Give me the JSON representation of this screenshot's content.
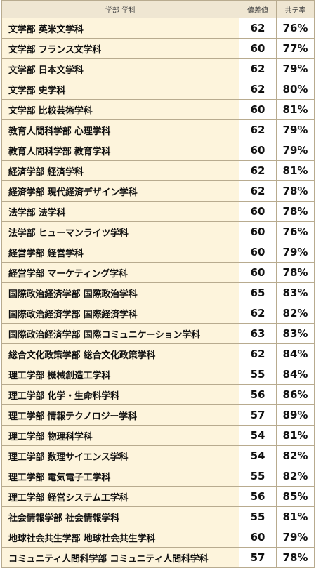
{
  "header": {
    "col_name": "学部 学科",
    "col_hensachi": "偏差値",
    "col_kyotei": "共テ率"
  },
  "rows": [
    {
      "name": "文学部 英米文学科",
      "hensachi": "62",
      "kyotei": "76%"
    },
    {
      "name": "文学部 フランス文学科",
      "hensachi": "60",
      "kyotei": "77%"
    },
    {
      "name": "文学部 日本文学科",
      "hensachi": "62",
      "kyotei": "79%"
    },
    {
      "name": "文学部 史学科",
      "hensachi": "62",
      "kyotei": "80%"
    },
    {
      "name": "文学部 比較芸術学科",
      "hensachi": "60",
      "kyotei": "81%"
    },
    {
      "name": "教育人間科学部 心理学科",
      "hensachi": "62",
      "kyotei": "79%"
    },
    {
      "name": "教育人間科学部 教育学科",
      "hensachi": "60",
      "kyotei": "79%"
    },
    {
      "name": "経済学部 経済学科",
      "hensachi": "62",
      "kyotei": "81%"
    },
    {
      "name": "経済学部 現代経済デザイン学科",
      "hensachi": "62",
      "kyotei": "78%"
    },
    {
      "name": "法学部 法学科",
      "hensachi": "60",
      "kyotei": "78%"
    },
    {
      "name": "法学部 ヒューマンライツ学科",
      "hensachi": "60",
      "kyotei": "76%"
    },
    {
      "name": "経営学部 経営学科",
      "hensachi": "60",
      "kyotei": "79%"
    },
    {
      "name": "経営学部 マーケティング学科",
      "hensachi": "60",
      "kyotei": "78%"
    },
    {
      "name": "国際政治経済学部 国際政治学科",
      "hensachi": "65",
      "kyotei": "83%"
    },
    {
      "name": "国際政治経済学部 国際経済学科",
      "hensachi": "62",
      "kyotei": "82%"
    },
    {
      "name": "国際政治経済学部 国際コミュニケーション学科",
      "hensachi": "63",
      "kyotei": "83%"
    },
    {
      "name": "総合文化政策学部 総合文化政策学科",
      "hensachi": "62",
      "kyotei": "84%"
    },
    {
      "name": "理工学部 機械創造工学科",
      "hensachi": "55",
      "kyotei": "84%"
    },
    {
      "name": "理工学部 化学・生命科学科",
      "hensachi": "56",
      "kyotei": "86%"
    },
    {
      "name": "理工学部 情報テクノロジー学科",
      "hensachi": "57",
      "kyotei": "89%"
    },
    {
      "name": "理工学部 物理科学科",
      "hensachi": "54",
      "kyotei": "81%"
    },
    {
      "name": "理工学部 数理サイエンス学科",
      "hensachi": "54",
      "kyotei": "82%"
    },
    {
      "name": "理工学部 電気電子工学科",
      "hensachi": "55",
      "kyotei": "82%"
    },
    {
      "name": "理工学部 経営システム工学科",
      "hensachi": "56",
      "kyotei": "85%"
    },
    {
      "name": "社会情報学部 社会情報学科",
      "hensachi": "55",
      "kyotei": "81%"
    },
    {
      "name": "地球社会共生学部 地球社会共生学科",
      "hensachi": "60",
      "kyotei": "79%"
    },
    {
      "name": "コミュニティ人間科学部 コミュニティ人間科学科",
      "hensachi": "57",
      "kyotei": "78%"
    }
  ]
}
